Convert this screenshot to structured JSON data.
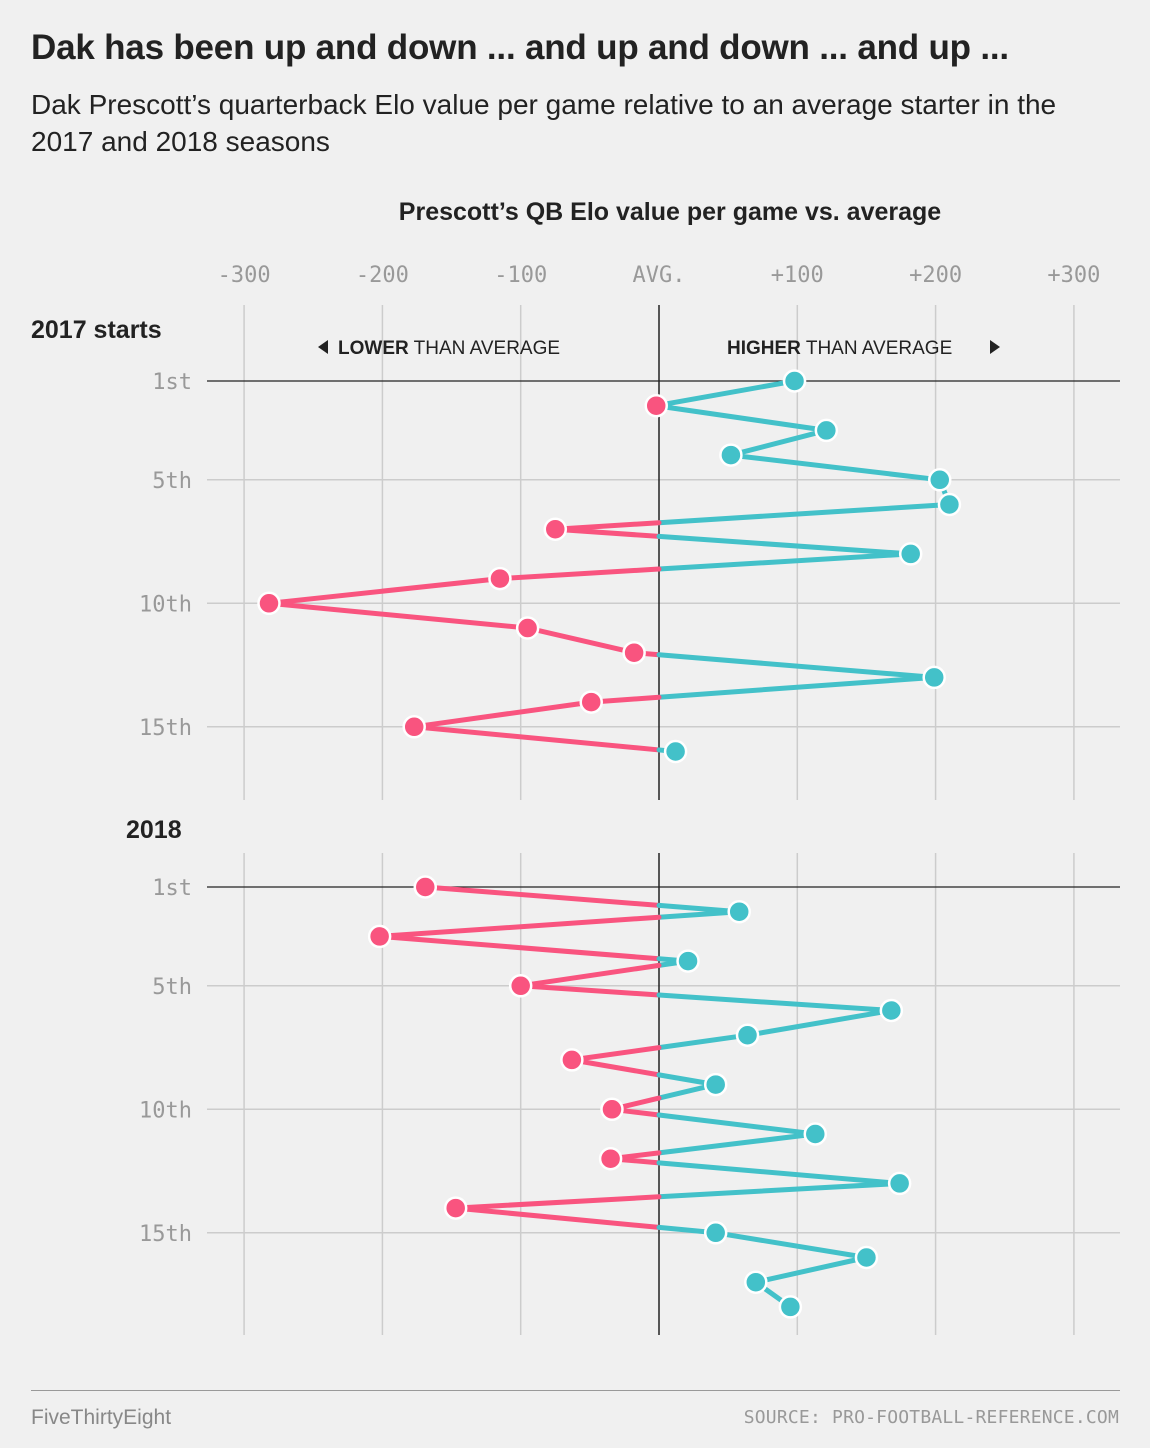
{
  "title": "Dak has been up and down ... and up and down ... and up ...",
  "subtitle": "Dak Prescott’s quarterback Elo value per game relative to an average starter in the 2017 and 2018 seasons",
  "footer": {
    "brand": "FiveThirtyEight",
    "source": "SOURCE: PRO-FOOTBALL-REFERENCE.COM"
  },
  "colors": {
    "above": "#43c1c9",
    "below": "#f9547f",
    "grid": "#cccccc",
    "zero": "#222222",
    "tick": "#999999"
  },
  "direction_labels": {
    "lower_strong": "LOWER",
    "lower_rest": " THAN AVERAGE",
    "higher_strong": "HIGHER",
    "higher_rest": " THAN AVERAGE",
    "lower_arrow": "left-triangle-icon",
    "higher_arrow": "right-triangle-icon"
  },
  "chart_data": {
    "type": "line",
    "orientation": "horizontal-value, vertical-game",
    "xlabel": "Prescott’s QB Elo value per game vs. average",
    "x_ticks": [
      -300,
      -200,
      -100,
      0,
      100,
      200,
      300
    ],
    "x_tick_labels": [
      "-300",
      "-200",
      "-100",
      "AVG.",
      "+100",
      "+200",
      "+300"
    ],
    "xlim": [
      -325,
      335
    ],
    "y_tick_games": [
      1,
      5,
      10,
      15
    ],
    "y_tick_labels": [
      "1st",
      "5th",
      "10th",
      "15th"
    ],
    "grid": true,
    "panels": [
      {
        "label": "2017 starts",
        "games": 16,
        "values": [
          98,
          -2,
          121,
          52,
          203,
          210,
          -75,
          182,
          -115,
          -282,
          -95,
          -18,
          199,
          -49,
          -177,
          12
        ]
      },
      {
        "label": "2018",
        "games": 18,
        "values": [
          -169,
          58,
          -202,
          21,
          -100,
          168,
          64,
          -63,
          41,
          -34,
          113,
          -35,
          174,
          -147,
          41,
          150,
          70,
          95
        ]
      }
    ]
  }
}
